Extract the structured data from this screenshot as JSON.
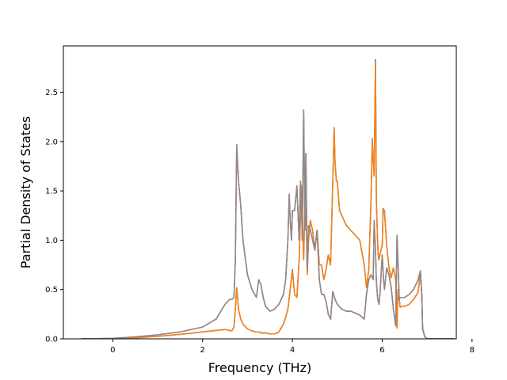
{
  "chart_data": {
    "type": "line",
    "title": "",
    "xlabel": "Frequency (THz)",
    "ylabel": "Partial Density of States",
    "xlim": [
      -1.1,
      7.65
    ],
    "ylim": [
      0,
      2.97
    ],
    "xticks": [
      0,
      2,
      4,
      6,
      8
    ],
    "yticks": [
      0.0,
      0.5,
      1.0,
      1.5,
      2.0,
      2.5
    ],
    "xtick_labels": [
      "0",
      "2",
      "4",
      "6",
      "8"
    ],
    "ytick_labels": [
      "0.0",
      "0.5",
      "1.0",
      "1.5",
      "2.0",
      "2.5"
    ],
    "grid": false,
    "legend": "none",
    "series": [
      {
        "color": "#1f77b4",
        "x": [
          -0.7,
          0.0,
          0.5,
          1.0,
          1.5,
          2.0,
          2.3,
          2.5,
          2.6,
          2.65,
          2.7,
          2.73,
          2.76,
          2.8,
          2.85,
          2.9,
          3.0,
          3.1,
          3.2,
          3.25,
          3.3,
          3.4,
          3.5,
          3.6,
          3.7,
          3.8,
          3.85,
          3.9,
          3.95,
          4.0,
          4.05,
          4.1,
          4.15,
          4.2,
          4.25,
          4.28,
          4.3,
          4.33,
          4.36,
          4.4,
          4.45,
          4.5,
          4.55,
          4.6,
          4.65,
          4.7,
          4.75,
          4.8,
          4.85,
          4.9,
          4.93,
          4.95,
          4.98,
          5.0,
          5.05,
          5.1,
          5.2,
          5.3,
          5.4,
          5.5,
          5.6,
          5.65,
          5.7,
          5.75,
          5.78,
          5.8,
          5.82,
          5.85,
          5.87,
          5.9,
          5.92,
          5.95,
          6.0,
          6.02,
          6.05,
          6.1,
          6.15,
          6.2,
          6.25,
          6.3,
          6.33,
          6.35,
          6.38,
          6.4,
          6.45,
          6.5,
          6.6,
          6.7,
          6.8,
          6.85,
          6.88,
          6.9,
          6.93,
          6.95,
          7.0,
          7.2,
          7.6
        ],
        "y": [
          0.0,
          0.002,
          0.01,
          0.025,
          0.045,
          0.07,
          0.085,
          0.095,
          0.085,
          0.08,
          0.12,
          0.3,
          0.52,
          0.3,
          0.2,
          0.15,
          0.1,
          0.08,
          0.07,
          0.07,
          0.06,
          0.06,
          0.05,
          0.05,
          0.07,
          0.15,
          0.22,
          0.3,
          0.5,
          0.7,
          0.45,
          0.42,
          0.8,
          1.55,
          0.8,
          1.4,
          1.58,
          0.65,
          1.0,
          1.2,
          1.1,
          0.9,
          1.1,
          0.75,
          0.75,
          0.6,
          0.7,
          0.85,
          0.75,
          1.6,
          2.14,
          1.8,
          1.6,
          1.6,
          1.3,
          1.25,
          1.15,
          1.1,
          1.05,
          1.0,
          0.75,
          0.52,
          0.7,
          1.4,
          2.03,
          1.8,
          1.65,
          2.83,
          1.4,
          0.95,
          0.8,
          0.85,
          0.95,
          1.32,
          1.3,
          0.95,
          0.72,
          0.62,
          0.72,
          0.6,
          0.11,
          0.5,
          0.4,
          0.32,
          0.33,
          0.33,
          0.35,
          0.4,
          0.47,
          0.68,
          0.45,
          0.1,
          0.05,
          0.02,
          0.0,
          0.0,
          0.0
        ]
      },
      {
        "color": "#ff7f0e",
        "x": [
          -0.7,
          0.0,
          0.5,
          1.0,
          1.5,
          2.0,
          2.3,
          2.5,
          2.6,
          2.65,
          2.7,
          2.73,
          2.76,
          2.8,
          2.85,
          2.9,
          3.0,
          3.1,
          3.2,
          3.25,
          3.3,
          3.4,
          3.5,
          3.6,
          3.7,
          3.8,
          3.85,
          3.9,
          3.95,
          4.0,
          4.05,
          4.1,
          4.15,
          4.2,
          4.25,
          4.28,
          4.3,
          4.33,
          4.36,
          4.4,
          4.45,
          4.5,
          4.55,
          4.6,
          4.65,
          4.7,
          4.75,
          4.8,
          4.85,
          4.9,
          4.93,
          4.95,
          4.98,
          5.0,
          5.05,
          5.1,
          5.2,
          5.3,
          5.4,
          5.5,
          5.6,
          5.65,
          5.7,
          5.75,
          5.78,
          5.8,
          5.82,
          5.85,
          5.87,
          5.9,
          5.92,
          5.95,
          6.0,
          6.02,
          6.05,
          6.1,
          6.15,
          6.2,
          6.25,
          6.3,
          6.33,
          6.35,
          6.38,
          6.4,
          6.45,
          6.5,
          6.6,
          6.7,
          6.8,
          6.85,
          6.88,
          6.9,
          6.93,
          6.95,
          7.0,
          7.2,
          7.6
        ],
        "y": [
          0.0,
          0.002,
          0.01,
          0.025,
          0.045,
          0.07,
          0.085,
          0.095,
          0.085,
          0.08,
          0.12,
          0.3,
          0.52,
          0.3,
          0.2,
          0.15,
          0.1,
          0.08,
          0.07,
          0.07,
          0.06,
          0.06,
          0.05,
          0.05,
          0.07,
          0.15,
          0.22,
          0.3,
          0.5,
          0.69,
          0.45,
          0.42,
          0.8,
          1.54,
          0.8,
          1.4,
          1.57,
          0.65,
          1.0,
          1.2,
          1.1,
          0.9,
          1.1,
          0.75,
          0.75,
          0.6,
          0.7,
          0.85,
          0.75,
          1.6,
          2.13,
          1.8,
          1.6,
          1.6,
          1.3,
          1.25,
          1.15,
          1.1,
          1.05,
          1.0,
          0.75,
          0.52,
          0.7,
          1.4,
          2.02,
          1.8,
          1.65,
          2.81,
          1.4,
          0.95,
          0.8,
          0.85,
          0.95,
          1.31,
          1.3,
          0.95,
          0.72,
          0.62,
          0.72,
          0.6,
          0.11,
          0.5,
          0.4,
          0.32,
          0.33,
          0.33,
          0.35,
          0.4,
          0.47,
          0.67,
          0.45,
          0.1,
          0.05,
          0.02,
          0.0,
          0.0,
          0.0
        ]
      },
      {
        "color": "#d62728",
        "x": [
          -0.7,
          0.0,
          0.5,
          1.0,
          1.5,
          2.0,
          2.3,
          2.5,
          2.6,
          2.65,
          2.7,
          2.73,
          2.76,
          2.8,
          2.85,
          2.9,
          3.0,
          3.1,
          3.2,
          3.25,
          3.3,
          3.35,
          3.4,
          3.5,
          3.6,
          3.7,
          3.8,
          3.85,
          3.9,
          3.93,
          3.95,
          3.98,
          4.0,
          4.05,
          4.1,
          4.15,
          4.18,
          4.2,
          4.22,
          4.25,
          4.28,
          4.3,
          4.33,
          4.36,
          4.4,
          4.45,
          4.5,
          4.55,
          4.6,
          4.65,
          4.7,
          4.75,
          4.8,
          4.85,
          4.9,
          4.95,
          5.0,
          5.1,
          5.2,
          5.3,
          5.4,
          5.5,
          5.6,
          5.65,
          5.7,
          5.75,
          5.8,
          5.82,
          5.85,
          5.87,
          5.9,
          5.93,
          5.95,
          6.0,
          6.03,
          6.05,
          6.1,
          6.15,
          6.2,
          6.25,
          6.3,
          6.33,
          6.35,
          6.38,
          6.4,
          6.5,
          6.6,
          6.7,
          6.8,
          6.85,
          6.88,
          6.9,
          6.93,
          6.95,
          7.0,
          7.2,
          7.6
        ],
        "y": [
          0.0,
          0.005,
          0.02,
          0.04,
          0.07,
          0.12,
          0.2,
          0.35,
          0.4,
          0.4,
          0.42,
          0.8,
          1.96,
          1.6,
          1.35,
          1.0,
          0.65,
          0.5,
          0.42,
          0.6,
          0.55,
          0.42,
          0.33,
          0.28,
          0.3,
          0.35,
          0.45,
          0.6,
          1.0,
          1.46,
          1.2,
          1.0,
          1.3,
          1.3,
          1.55,
          1.0,
          1.6,
          1.4,
          1.0,
          2.32,
          1.1,
          1.88,
          0.7,
          1.15,
          1.1,
          1.0,
          0.9,
          1.1,
          0.6,
          0.45,
          0.45,
          0.38,
          0.25,
          0.2,
          0.48,
          0.4,
          0.35,
          0.3,
          0.28,
          0.28,
          0.26,
          0.24,
          0.2,
          0.45,
          0.6,
          0.65,
          0.6,
          1.2,
          0.9,
          0.58,
          0.4,
          0.35,
          0.45,
          0.85,
          0.6,
          0.5,
          0.72,
          0.65,
          0.52,
          0.3,
          0.13,
          1.05,
          0.8,
          0.4,
          0.42,
          0.42,
          0.45,
          0.5,
          0.6,
          0.69,
          0.45,
          0.1,
          0.05,
          0.02,
          0.0,
          0.0,
          0.0
        ]
      },
      {
        "color": "#8c8c8c",
        "x": [
          -0.7,
          0.0,
          0.5,
          1.0,
          1.5,
          2.0,
          2.3,
          2.5,
          2.6,
          2.65,
          2.7,
          2.73,
          2.76,
          2.8,
          2.85,
          2.9,
          3.0,
          3.1,
          3.2,
          3.25,
          3.3,
          3.35,
          3.4,
          3.5,
          3.6,
          3.7,
          3.8,
          3.85,
          3.9,
          3.93,
          3.95,
          3.98,
          4.0,
          4.05,
          4.1,
          4.15,
          4.18,
          4.2,
          4.22,
          4.25,
          4.28,
          4.3,
          4.33,
          4.36,
          4.4,
          4.45,
          4.5,
          4.55,
          4.6,
          4.65,
          4.7,
          4.75,
          4.8,
          4.85,
          4.9,
          4.95,
          5.0,
          5.1,
          5.2,
          5.3,
          5.4,
          5.5,
          5.6,
          5.65,
          5.7,
          5.75,
          5.8,
          5.82,
          5.85,
          5.87,
          5.9,
          5.93,
          5.95,
          6.0,
          6.03,
          6.05,
          6.1,
          6.15,
          6.2,
          6.25,
          6.3,
          6.33,
          6.35,
          6.38,
          6.4,
          6.5,
          6.6,
          6.7,
          6.8,
          6.85,
          6.88,
          6.9,
          6.93,
          6.95,
          7.0,
          7.2,
          7.6
        ],
        "y": [
          0.0,
          0.005,
          0.02,
          0.04,
          0.07,
          0.12,
          0.2,
          0.35,
          0.4,
          0.4,
          0.42,
          0.8,
          1.97,
          1.6,
          1.35,
          1.0,
          0.65,
          0.5,
          0.42,
          0.6,
          0.55,
          0.42,
          0.33,
          0.28,
          0.3,
          0.35,
          0.45,
          0.6,
          1.0,
          1.47,
          1.2,
          1.0,
          1.3,
          1.3,
          1.55,
          1.0,
          1.6,
          1.4,
          1.0,
          2.32,
          1.1,
          1.88,
          0.7,
          1.15,
          1.1,
          1.0,
          0.9,
          1.1,
          0.6,
          0.45,
          0.45,
          0.38,
          0.25,
          0.2,
          0.48,
          0.4,
          0.35,
          0.3,
          0.28,
          0.28,
          0.26,
          0.24,
          0.2,
          0.45,
          0.6,
          0.65,
          0.6,
          1.2,
          0.9,
          0.58,
          0.4,
          0.35,
          0.45,
          0.85,
          0.6,
          0.5,
          0.72,
          0.65,
          0.52,
          0.3,
          0.13,
          1.05,
          0.8,
          0.4,
          0.42,
          0.42,
          0.45,
          0.5,
          0.6,
          0.69,
          0.45,
          0.1,
          0.05,
          0.02,
          0.0,
          0.0,
          0.0
        ]
      }
    ]
  }
}
